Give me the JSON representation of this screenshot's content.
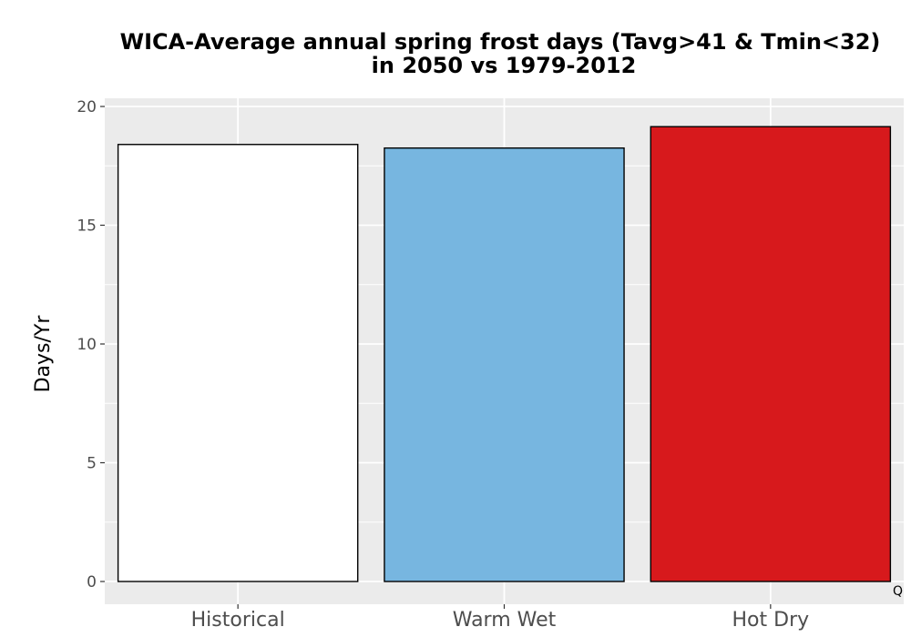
{
  "chart_data": {
    "type": "bar",
    "title_lines": [
      "WICA-Average annual spring frost days (Tavg>41 & Tmin<32)",
      "in 2050 vs 1979-2012"
    ],
    "xlabel": "",
    "ylabel": "Days/Yr",
    "categories": [
      "Historical",
      "Warm Wet",
      "Hot Dry"
    ],
    "values": [
      18.4,
      18.25,
      19.15
    ],
    "bar_colors": [
      "#ffffff",
      "#77b6e0",
      "#d7191c"
    ],
    "bar_outline": "#000000",
    "ylim": [
      0,
      20
    ],
    "yticks": [
      0,
      5,
      10,
      15,
      20
    ],
    "grid": true,
    "panel_background": "#ebebeb",
    "grid_color": "#ffffff"
  },
  "corner_mark": "Q"
}
